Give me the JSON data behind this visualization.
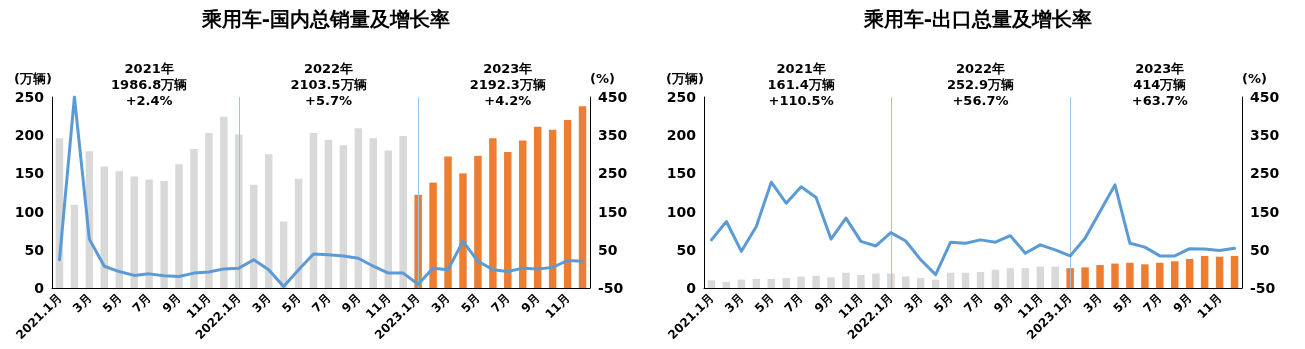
{
  "chart_data": [
    {
      "type": "bar",
      "title": "乘用车-国内总销量及增长率",
      "ylabel": "(万辆)",
      "y2label": "(%)",
      "categories": [
        "2021.1月",
        null,
        "3月",
        null,
        "5月",
        null,
        "7月",
        null,
        "9月",
        null,
        "11月",
        null,
        "2022.1月",
        null,
        "3月",
        null,
        "5月",
        null,
        "7月",
        null,
        "9月",
        null,
        "11月",
        null,
        "2023.1月",
        null,
        "3月",
        null,
        "5月",
        null,
        "7月",
        null,
        "9月",
        null,
        "11月",
        null
      ],
      "series": [
        {
          "colors": [
            "#d9d9d9",
            "#d9d9d9",
            "#d9d9d9",
            "#d9d9d9",
            "#d9d9d9",
            "#d9d9d9",
            "#d9d9d9",
            "#d9d9d9",
            "#d9d9d9",
            "#d9d9d9",
            "#d9d9d9",
            "#d9d9d9",
            "#d9d9d9",
            "#d9d9d9",
            "#d9d9d9",
            "#d9d9d9",
            "#d9d9d9",
            "#d9d9d9",
            "#d9d9d9",
            "#d9d9d9",
            "#d9d9d9",
            "#d9d9d9",
            "#d9d9d9",
            "#d9d9d9",
            "#ed7d31",
            "#ed7d31",
            "#ed7d31",
            "#ed7d31",
            "#ed7d31",
            "#ed7d31",
            "#ed7d31",
            "#ed7d31",
            "#ed7d31",
            "#ed7d31",
            "#ed7d31",
            "#ed7d31"
          ],
          "values": [
            196,
            109,
            179,
            159,
            153,
            146,
            142,
            140,
            162,
            182,
            203,
            224,
            201,
            135,
            175,
            87,
            143,
            203,
            194,
            187,
            209,
            196,
            180,
            199,
            122,
            138,
            172,
            150,
            173,
            196,
            178,
            193,
            211,
            207,
            220,
            238
          ]
        },
        {
          "type": "line",
          "axis": "y2",
          "color": "#5b9bd5",
          "values": [
            24,
            450,
            78,
            7,
            -7,
            -17,
            -13,
            -18,
            -20,
            -11,
            -8,
            0,
            2,
            24,
            -2,
            -46,
            -2,
            39,
            37,
            34,
            28,
            7,
            -11,
            -11,
            -40,
            2,
            -2,
            72,
            20,
            -2,
            -7,
            2,
            0,
            4,
            22,
            20
          ]
        }
      ],
      "ylim": [
        0,
        250
      ],
      "yticks": [
        0,
        50,
        100,
        150,
        200,
        250
      ],
      "y2lim": [
        -50,
        450
      ],
      "y2ticks": [
        -50,
        50,
        150,
        250,
        350,
        450
      ],
      "ref_lines": [
        {
          "axis": "x",
          "value": "2022.1月",
          "color": "#9dc3e6"
        },
        {
          "axis": "x",
          "value": "2023.1月",
          "color": "#9dc3e6"
        }
      ],
      "annotations": [
        "2021年\n1986.8万辆\n+2.4%",
        "2022年\n2103.5万辆\n+5.7%",
        "2023年\n2192.3万辆\n+4.2%"
      ],
      "grid": false,
      "marker": "none",
      "line_style": "solid"
    },
    {
      "type": "bar",
      "title": "乘用车-出口总量及增长率",
      "ylabel": "(万辆)",
      "y2label": "(%)",
      "categories": [
        "2021.1月",
        null,
        "3月",
        null,
        "5月",
        null,
        "7月",
        null,
        "9月",
        null,
        "11月",
        null,
        "2022.1月",
        null,
        "3月",
        null,
        "5月",
        null,
        "7月",
        null,
        "9月",
        null,
        "11月",
        null,
        "2023.1月",
        null,
        "3月",
        null,
        "5月",
        null,
        "7月",
        null,
        "9月",
        null,
        "11月",
        null
      ],
      "series": [
        {
          "colors": [
            "#d9d9d9",
            "#d9d9d9",
            "#d9d9d9",
            "#d9d9d9",
            "#d9d9d9",
            "#d9d9d9",
            "#d9d9d9",
            "#d9d9d9",
            "#d9d9d9",
            "#d9d9d9",
            "#d9d9d9",
            "#d9d9d9",
            "#d9d9d9",
            "#d9d9d9",
            "#d9d9d9",
            "#d9d9d9",
            "#d9d9d9",
            "#d9d9d9",
            "#d9d9d9",
            "#d9d9d9",
            "#d9d9d9",
            "#d9d9d9",
            "#d9d9d9",
            "#d9d9d9",
            "#ed7d31",
            "#ed7d31",
            "#ed7d31",
            "#ed7d31",
            "#ed7d31",
            "#ed7d31",
            "#ed7d31",
            "#ed7d31",
            "#ed7d31",
            "#ed7d31",
            "#ed7d31",
            "#ed7d31"
          ],
          "values": [
            10,
            8,
            11,
            12,
            12,
            13,
            15,
            16,
            14,
            20,
            17,
            19,
            19,
            15,
            13,
            11,
            20,
            20,
            21,
            24,
            26,
            26,
            28,
            28,
            26,
            27,
            30,
            32,
            33,
            31,
            33,
            35,
            38,
            42,
            41,
            42
          ]
        },
        {
          "type": "line",
          "axis": "y2",
          "color": "#5b9bd5",
          "values": [
            76,
            124,
            46,
            111,
            227,
            172,
            215,
            187,
            78,
            133,
            72,
            60,
            95,
            73,
            24,
            -15,
            70,
            67,
            76,
            70,
            87,
            41,
            63,
            50,
            34,
            80,
            150,
            220,
            67,
            57,
            34,
            34,
            53,
            52,
            48,
            54
          ]
        }
      ],
      "ylim": [
        0,
        250
      ],
      "yticks": [
        0,
        50,
        100,
        150,
        200,
        250
      ],
      "y2lim": [
        -50,
        450
      ],
      "y2ticks": [
        -50,
        50,
        150,
        250,
        350,
        450
      ],
      "ref_lines": [
        {
          "axis": "x",
          "value": "2022.1月",
          "color": "#9dc3e6"
        },
        {
          "axis": "x",
          "value": "2023.1月",
          "color": "#9dc3e6"
        }
      ],
      "annotations": [
        "2021年\n161.4万辆\n+110.5%",
        "2022年\n252.9万辆\n+56.7%",
        "2023年\n414万辆\n+63.7%"
      ],
      "grid": false,
      "marker": "none",
      "line_style": "solid"
    }
  ]
}
